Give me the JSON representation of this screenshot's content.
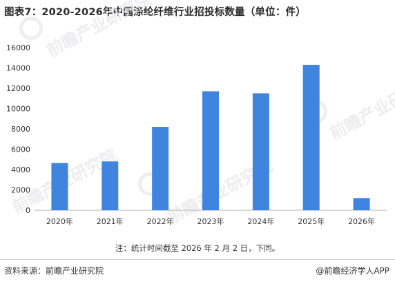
{
  "title": "图表7：2020-2026年中国涤纶纤维行业招投标数量（单位：件）",
  "note": "注：统计时间截至 2026 年 2 月 2 日，下同。",
  "source": "资料来源：前瞻产业研究院",
  "brand": "@前瞻经济学人APP",
  "watermark_text": "前瞻产业研究院",
  "colors": {
    "bar": "#3f85e0",
    "axis": "#b0b0b0",
    "text": "#333333"
  },
  "chart_data": {
    "type": "bar",
    "title": "图表7：2020-2026年中国涤纶纤维行业招投标数量（单位：件）",
    "xlabel": "",
    "ylabel": "",
    "categories": [
      "2020年",
      "2021年",
      "2022年",
      "2023年",
      "2024年",
      "2025年",
      "2026年"
    ],
    "values": [
      4650,
      4800,
      8200,
      11700,
      11500,
      14300,
      1200
    ],
    "ylim": [
      0,
      16000
    ],
    "yticks": [
      0,
      2000,
      4000,
      6000,
      8000,
      10000,
      12000,
      14000,
      16000
    ],
    "grid": false,
    "legend": "none"
  }
}
